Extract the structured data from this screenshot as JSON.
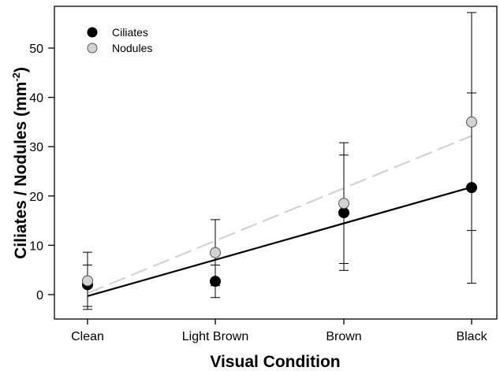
{
  "chart_data": {
    "type": "scatter",
    "xlabel": "Visual Condition",
    "ylabel": "Ciliates / Nodules (mm",
    "ylabel_sup": "-2",
    "ylabel_close": ")",
    "categories": [
      "Clean",
      "Light Brown",
      "Brown",
      "Black"
    ],
    "ylim": [
      -5,
      55
    ],
    "yticks": [
      0,
      10,
      20,
      30,
      40,
      50
    ],
    "grid": false,
    "legend": "top-left",
    "series": [
      {
        "name": "Ciliates",
        "color": "#000000",
        "values": [
          2.0,
          2.7,
          16.6,
          21.7
        ],
        "err_low": [
          -2.4,
          -0.6,
          4.9,
          2.3
        ],
        "err_high": [
          6.0,
          6.0,
          28.3,
          40.9
        ],
        "fit": {
          "style": "solid",
          "y_start": -0.3,
          "y_end": 21.8,
          "color": "#000000"
        }
      },
      {
        "name": "Nodules",
        "color": "#d3d3d3",
        "values": [
          2.8,
          8.5,
          18.5,
          35.0
        ],
        "err_low": [
          -3.0,
          1.8,
          6.3,
          13.0
        ],
        "err_high": [
          8.6,
          15.2,
          30.8,
          57.2
        ],
        "fit": {
          "style": "dashed",
          "y_start": 0.3,
          "y_end": 32.2,
          "color": "#d3d3d3"
        }
      }
    ]
  }
}
